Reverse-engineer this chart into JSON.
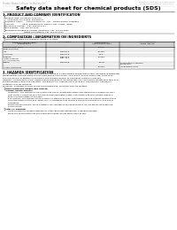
{
  "header_left": "Product Name: Lithium Ion Battery Cell",
  "header_right": "Reference Number: SDS-LIB-000010\nEstablished / Revision: Dec.1.2010",
  "title": "Safety data sheet for chemical products (SDS)",
  "section1_title": "1. PRODUCT AND COMPANY IDENTIFICATION",
  "section1_lines": [
    "  ・Product name: Lithium Ion Battery Cell",
    "  ・Product code: Cylindrical-type cell",
    "       SHY66550, SHY46600, SHY86600A",
    "  ・Company name:      Sanyo Electric Co., Ltd.,  Mobile Energy Company",
    "  ・Address:            2001  Kamimahara, Sumoto-City, Hyogo, Japan",
    "  ・Telephone number:  +81-799-26-4111",
    "  ・Fax number:  +81-799-26-4120",
    "  ・Emergency telephone number (Weekday) +81-799-26-3862",
    "                                (Night and holiday) +81-799-26-4101"
  ],
  "section2_title": "2. COMPOSITION / INFORMATION ON INGREDIENTS",
  "section2_sub1": "  ・Substance or preparation: Preparation",
  "section2_sub2": "  ・Information about the chemical nature of product:",
  "table_col1": [
    "Common chemical name /\nSpecies name",
    "Lithium cobalt oxide\n(LiMn-Co-Ni2O4)",
    "Iron",
    "Aluminum",
    "Graphite\n(Flake graphite)\n(Al film graphite)",
    "Copper",
    "Organic electrolyte"
  ],
  "table_col2": [
    "-",
    "-",
    "7439-89-6",
    "7429-90-5",
    "7782-42-5\n7782-44-7",
    "7440-50-8",
    "-"
  ],
  "table_col3": [
    "(30-60%)",
    "30-60%",
    "15-25%",
    "2-5%",
    "10-25%",
    "5-15%",
    "10-20%"
  ],
  "table_col4": [
    "-",
    "-",
    "-",
    "-",
    "-",
    "Sensitization of the skin\ngroup No.2",
    "Inflammable liquid"
  ],
  "section3_title": "3. HAZARDS IDENTIFICATION",
  "section3_text": [
    "For the battery cell, chemical materials are stored in a hermetically sealed metal case, designed to withstand",
    "temperatures and pressures encountered during normal use. As a result, during normal use, there is no",
    "physical danger of ignition or explosion and thereisa danger of hazardous materials leakage.",
    "However, if exposed to a fire, added mechanical shocks, decomposed, shorted electric circuits may take use,",
    "the gas besides cannot be operated. The battery cell case will be breached or fire-persons, hazardous",
    "materials may be released.",
    "Moreover, if heated strongly by the surrounding fire, some gas may be emitted."
  ],
  "section3_sub1": "  ・Most important hazard and effects:",
  "section3_human": "    Human health effects:",
  "section3_human_lines": [
    "        Inhalation: The release of the electrolyte has an anesthesia action and stimulates a respiratory tract.",
    "        Skin contact: The release of the electrolyte stimulates a skin. The electrolyte skin contact causes a",
    "        sore and stimulation on the skin.",
    "        Eye contact: The release of the electrolyte stimulates eyes. The electrolyte eye contact causes a sore",
    "        and stimulation on the eye. Especially, a substance that causes a strong inflammation of the eye is",
    "        confirmed.",
    "        Environmental effects: Since a battery cell remains in the environment, do not throw out it into the",
    "        environment."
  ],
  "section3_sub2": "  ・Specific hazards:",
  "section3_specific": [
    "        If the electrolyte contacts with water, it will generate detrimental hydrogen fluoride.",
    "        Since the used electrolyte is inflammable liquid, do not bring close to fire."
  ],
  "bg_color": "#ffffff",
  "text_color": "#000000",
  "header_color": "#999999",
  "line_color": "#000000",
  "table_header_bg": "#d0d0d0"
}
